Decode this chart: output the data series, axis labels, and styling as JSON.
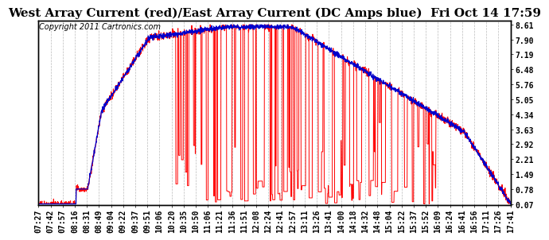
{
  "title": "West Array Current (red)/East Array Current (DC Amps blue)  Fri Oct 14 17:59",
  "copyright": "Copyright 2011 Cartronics.com",
  "yticks": [
    0.07,
    0.78,
    1.49,
    2.21,
    2.92,
    3.63,
    4.34,
    5.05,
    5.76,
    6.48,
    7.19,
    7.9,
    8.61
  ],
  "ylim": [
    0.0,
    8.8
  ],
  "background_color": "#ffffff",
  "plot_bg_color": "#ffffff",
  "red_color": "#ff0000",
  "blue_color": "#0000cc",
  "grid_color": "#bbbbbb",
  "xtick_labels": [
    "07:27",
    "07:42",
    "07:57",
    "08:16",
    "08:31",
    "08:49",
    "09:04",
    "09:22",
    "09:37",
    "09:51",
    "10:06",
    "10:20",
    "10:35",
    "10:50",
    "11:06",
    "11:21",
    "11:36",
    "11:51",
    "12:08",
    "12:24",
    "12:41",
    "12:57",
    "13:11",
    "13:26",
    "13:41",
    "14:00",
    "14:18",
    "14:32",
    "14:48",
    "15:04",
    "15:22",
    "15:37",
    "15:52",
    "16:09",
    "16:24",
    "16:41",
    "16:56",
    "17:11",
    "17:26",
    "17:41"
  ],
  "title_fontsize": 11,
  "tick_fontsize": 7,
  "copyright_fontsize": 7
}
